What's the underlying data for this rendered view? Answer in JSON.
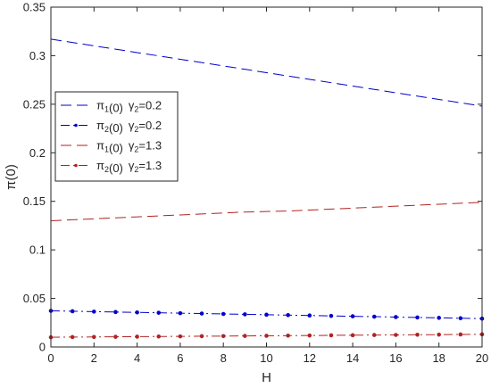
{
  "chart_data": {
    "type": "line",
    "xlabel": "H",
    "ylabel": "π(0)",
    "xlim": [
      0,
      20
    ],
    "ylim": [
      0,
      0.35
    ],
    "xticks": [
      0,
      2,
      4,
      6,
      8,
      10,
      12,
      14,
      16,
      18,
      20
    ],
    "yticks": [
      0,
      0.05,
      0.1,
      0.15,
      0.2,
      0.25,
      0.3,
      0.35
    ],
    "ytick_labels": [
      "0",
      "0.05",
      "0.1",
      "0.15",
      "0.2",
      "0.25",
      "0.3",
      "0.35"
    ],
    "grid": false,
    "legend_position": "upper-left",
    "x": [
      0,
      1,
      2,
      3,
      4,
      5,
      6,
      7,
      8,
      9,
      10,
      11,
      12,
      13,
      14,
      15,
      16,
      17,
      18,
      19,
      20
    ],
    "series": [
      {
        "pi": "π",
        "sub1": "1",
        "mid": "(0)",
        "gamma": "γ",
        "sub2": "2",
        "eq": "=0.2",
        "color": "#0000cc",
        "linestyle": "dashed",
        "marker": "none",
        "values": [
          0.317,
          0.3136,
          0.3101,
          0.3067,
          0.3032,
          0.2998,
          0.2963,
          0.2929,
          0.2894,
          0.286,
          0.2825,
          0.2791,
          0.2756,
          0.2722,
          0.2687,
          0.2653,
          0.2618,
          0.2584,
          0.2549,
          0.2515,
          0.248
        ]
      },
      {
        "pi": "π",
        "sub1": "2",
        "mid": "(0)",
        "gamma": "γ",
        "sub2": "2",
        "eq": "=0.2",
        "color": "#0000cc",
        "linestyle": "dashdot",
        "marker": "dot",
        "values": [
          0.0372,
          0.0368,
          0.0364,
          0.036,
          0.0356,
          0.0352,
          0.0348,
          0.0344,
          0.034,
          0.0336,
          0.0332,
          0.0328,
          0.0324,
          0.032,
          0.0316,
          0.0312,
          0.0308,
          0.0304,
          0.03,
          0.0296,
          0.0292
        ]
      },
      {
        "pi": "π",
        "sub1": "1",
        "mid": "(0)",
        "gamma": "γ",
        "sub2": "2",
        "eq": "=1.3",
        "color": "#b22222",
        "linestyle": "dashed",
        "marker": "none",
        "values": [
          0.13,
          0.131,
          0.132,
          0.133,
          0.134,
          0.135,
          0.136,
          0.137,
          0.138,
          0.139,
          0.1395,
          0.14,
          0.141,
          0.142,
          0.143,
          0.144,
          0.145,
          0.146,
          0.147,
          0.148,
          0.149
        ]
      },
      {
        "pi": "π",
        "sub1": "2",
        "mid": "(0)",
        "gamma": "γ",
        "sub2": "2",
        "eq": "=1.3",
        "color": "#b22222",
        "linestyle": "dashdot",
        "marker": "dot",
        "values": [
          0.01,
          0.0102,
          0.0103,
          0.0105,
          0.0106,
          0.0108,
          0.0109,
          0.0111,
          0.0112,
          0.0114,
          0.0115,
          0.0117,
          0.0118,
          0.012,
          0.0121,
          0.0123,
          0.0124,
          0.0126,
          0.0127,
          0.0129,
          0.013
        ]
      }
    ]
  }
}
